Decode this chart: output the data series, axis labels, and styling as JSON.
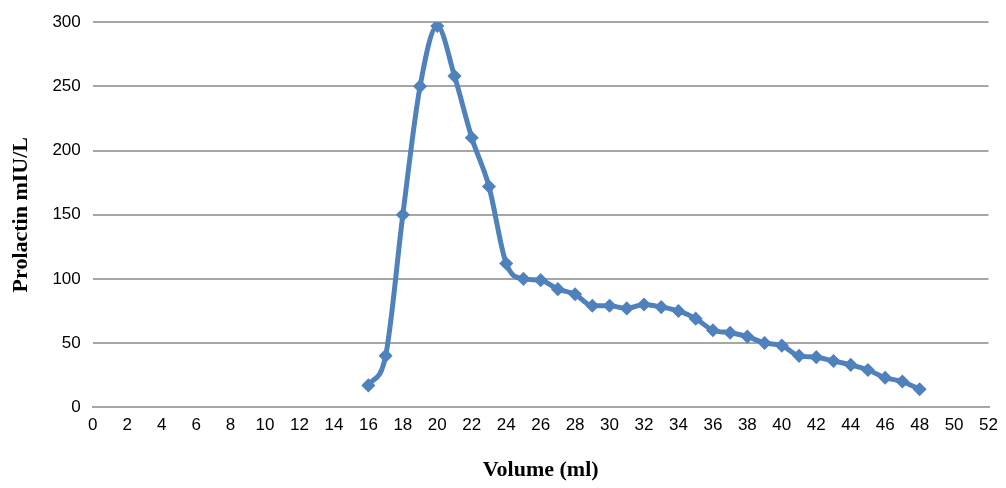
{
  "chart_data": {
    "type": "line",
    "xlabel": "Volume (ml)",
    "ylabel": "Prolactin mIU/L",
    "x": [
      16,
      17,
      18,
      19,
      20,
      21,
      22,
      23,
      24,
      25,
      26,
      27,
      28,
      29,
      30,
      31,
      32,
      33,
      34,
      35,
      36,
      37,
      38,
      39,
      40,
      41,
      42,
      43,
      44,
      45,
      46,
      47,
      48
    ],
    "series": [
      {
        "color": "#4f81bd",
        "values": [
          17,
          40,
          150,
          250,
          297,
          258,
          210,
          172,
          112,
          100,
          99,
          92,
          88,
          79,
          79,
          77,
          80,
          78,
          75,
          69,
          60,
          58,
          55,
          50,
          48,
          40,
          39,
          36,
          33,
          29,
          23,
          20,
          14
        ]
      }
    ],
    "xlim": [
      0,
      52
    ],
    "xticks": [
      0,
      2,
      4,
      6,
      8,
      10,
      12,
      14,
      16,
      18,
      20,
      22,
      24,
      26,
      28,
      30,
      32,
      34,
      36,
      38,
      40,
      42,
      44,
      46,
      48,
      50,
      52
    ],
    "ylim": [
      0,
      300
    ],
    "yticks": [
      0,
      50,
      100,
      150,
      200,
      250,
      300
    ],
    "grid": "y",
    "legend": false,
    "marker": "diamond",
    "line_style": "solid"
  }
}
